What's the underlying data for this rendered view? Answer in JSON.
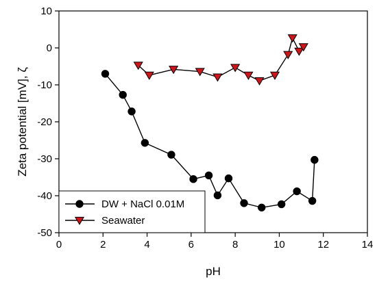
{
  "chart_data": {
    "type": "line",
    "xlabel": "pH",
    "ylabel": "Zeta potential [mV], ζ",
    "xlim": [
      0,
      14
    ],
    "ylim": [
      -50,
      10
    ],
    "xticks": [
      0,
      2,
      4,
      6,
      8,
      10,
      12,
      14
    ],
    "yticks": [
      10,
      0,
      -10,
      -20,
      -30,
      -40,
      -50
    ],
    "grid": false,
    "legend_position": "bottom-left",
    "series": [
      {
        "name": "DW + NaCl 0.01M",
        "marker": "circle",
        "color": "#000000",
        "x": [
          2.1,
          2.9,
          3.3,
          3.9,
          5.1,
          6.1,
          6.8,
          7.2,
          7.7,
          8.4,
          9.2,
          10.1,
          10.8,
          11.5,
          11.6
        ],
        "y": [
          -7.0,
          -12.7,
          -17.2,
          -25.7,
          -28.9,
          -35.5,
          -34.5,
          -39.9,
          -35.3,
          -42.0,
          -43.2,
          -42.3,
          -38.8,
          -41.4,
          -30.3
        ]
      },
      {
        "name": "Seawater",
        "marker": "triangle-down",
        "color": "#d0141c",
        "x": [
          3.6,
          4.1,
          5.2,
          6.4,
          7.2,
          8.0,
          8.6,
          9.1,
          9.8,
          10.4,
          10.6,
          10.9,
          11.1
        ],
        "y": [
          -4.7,
          -7.4,
          -5.8,
          -6.4,
          -7.9,
          -5.3,
          -7.4,
          -8.9,
          -7.4,
          -1.8,
          2.7,
          -0.9,
          0.3
        ]
      }
    ]
  }
}
